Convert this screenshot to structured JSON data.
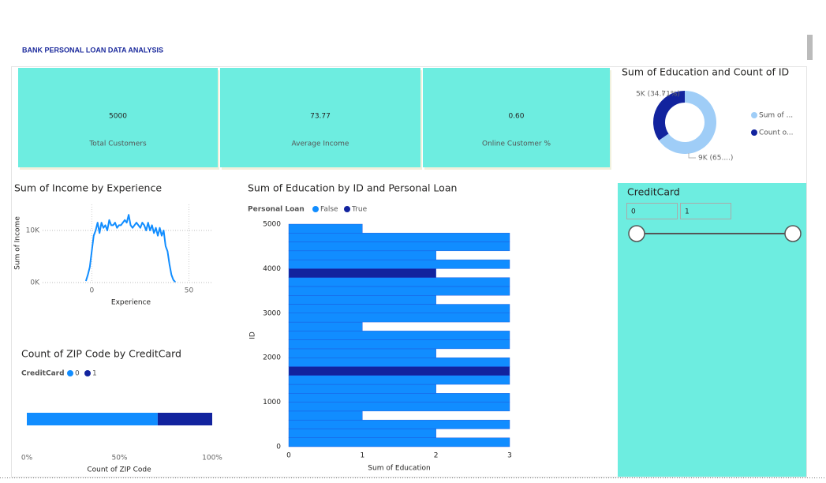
{
  "header": {
    "title": "BANK PERSONAL LOAN DATA ANALYSIS"
  },
  "cards": [
    {
      "value": "5000",
      "label": "Total Customers"
    },
    {
      "value": "73.77",
      "label": "Average Income"
    },
    {
      "value": "0.60",
      "label": "Online Customer %"
    }
  ],
  "slicer": {
    "title": "CreditCard",
    "min": "0",
    "max": "1"
  },
  "chart_data": [
    {
      "type": "pie",
      "title": "Sum of Education and Count of ID",
      "categories": [
        "Sum of ...",
        "Count o..."
      ],
      "values": [
        9405,
        5000
      ],
      "value_labels": [
        "9K (65....)",
        "5K (34.71%)"
      ],
      "colors": [
        "#9fcdf7",
        "#12239e"
      ],
      "donut": true
    },
    {
      "type": "line",
      "title": "Sum of Income by Experience",
      "xlabel": "Experience",
      "ylabel": "Sum of Income",
      "x": [
        -3,
        -2,
        -1,
        0,
        1,
        2,
        3,
        4,
        5,
        6,
        7,
        8,
        9,
        10,
        11,
        12,
        13,
        14,
        15,
        16,
        17,
        18,
        19,
        20,
        21,
        22,
        23,
        24,
        25,
        26,
        27,
        28,
        29,
        30,
        31,
        32,
        33,
        34,
        35,
        36,
        37,
        38,
        39,
        40,
        41,
        42,
        43
      ],
      "values": [
        300,
        1500,
        3000,
        6000,
        9000,
        10000,
        11500,
        9500,
        11500,
        10500,
        11000,
        10000,
        12000,
        11000,
        11000,
        11500,
        10500,
        11000,
        11000,
        11500,
        12000,
        11500,
        13000,
        11000,
        10500,
        11000,
        11500,
        11000,
        10500,
        11500,
        11000,
        10000,
        11500,
        10000,
        11000,
        9500,
        10500,
        9000,
        10500,
        9000,
        10000,
        7000,
        6000,
        3500,
        1500,
        500,
        100
      ],
      "color": "#118dff",
      "xlim": [
        -5,
        62
      ],
      "xticks": [
        0,
        50
      ],
      "ylim": [
        0,
        15000
      ],
      "yticks": [
        {
          "value": 0,
          "label": "0K"
        },
        {
          "value": 10000,
          "label": "10K"
        }
      ],
      "grid": true
    },
    {
      "type": "hbar-stacked",
      "title": "Sum of Education by ID and Personal Loan",
      "legend_title": "Personal Loan",
      "xlabel": "Sum of Education",
      "ylabel": "ID",
      "x": [
        100,
        300,
        500,
        700,
        900,
        1100,
        1300,
        1500,
        1700,
        1900,
        2100,
        2300,
        2500,
        2700,
        2900,
        3100,
        3300,
        3500,
        3700,
        3900,
        4100,
        4300,
        4500,
        4700,
        4900
      ],
      "series": [
        {
          "name": "False",
          "color": "#118dff",
          "values": [
            3,
            2,
            3,
            1,
            3,
            3,
            2,
            3,
            0,
            3,
            2,
            3,
            3,
            1,
            3,
            3,
            2,
            3,
            3,
            0,
            3,
            2,
            3,
            3,
            1
          ]
        },
        {
          "name": "True",
          "color": "#12239e",
          "values": [
            0,
            0,
            0,
            0,
            0,
            0,
            0,
            0,
            3,
            0,
            0,
            0,
            0,
            0,
            0,
            0,
            0,
            0,
            0,
            2,
            0,
            0,
            0,
            0,
            0
          ]
        }
      ],
      "xlim": [
        0,
        3
      ],
      "xticks": [
        0,
        1,
        2,
        3
      ],
      "ylim": [
        0,
        5000
      ],
      "yticks": [
        0,
        1000,
        2000,
        3000,
        4000,
        5000
      ]
    },
    {
      "type": "hbar-percent",
      "title": "Count of ZIP Code by CreditCard",
      "legend_title": "CreditCard",
      "xlabel": "Count of ZIP Code",
      "series": [
        {
          "name": "0",
          "color": "#118dff",
          "values": [
            70.6
          ]
        },
        {
          "name": "1",
          "color": "#12239e",
          "values": [
            29.4
          ]
        }
      ],
      "xlim": [
        0,
        100
      ],
      "xticks": [
        {
          "value": 0,
          "label": "0%"
        },
        {
          "value": 50,
          "label": "50%"
        },
        {
          "value": 100,
          "label": "100%"
        }
      ]
    }
  ]
}
